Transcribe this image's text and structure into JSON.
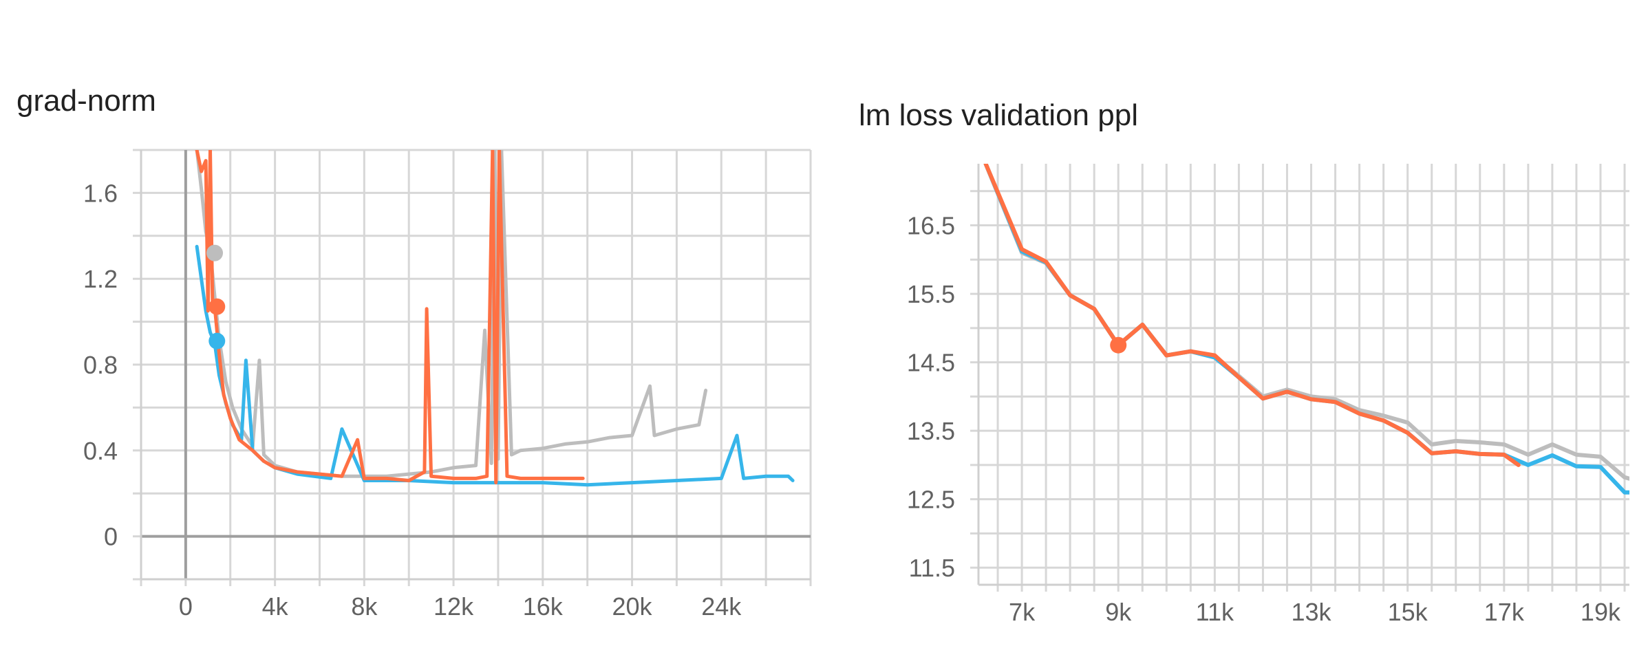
{
  "chart_data": [
    {
      "type": "line",
      "title": "grad-norm",
      "xlabel": "",
      "ylabel": "",
      "xlim": [
        -2000,
        28000
      ],
      "ylim": [
        -0.2,
        1.8
      ],
      "x_ticks": [
        "0",
        "4k",
        "8k",
        "12k",
        "16k",
        "20k",
        "24k"
      ],
      "y_ticks": [
        "0",
        "0.4",
        "0.8",
        "1.2",
        "1.6"
      ],
      "grid": true,
      "colors": {
        "blue": "#36b5ea",
        "gray": "#bdbdbd",
        "orange": "#ff7043"
      },
      "series": [
        {
          "color": "#bdbdbd",
          "x": [
            500,
            700,
            900,
            1100,
            1300,
            1500,
            1800,
            2100,
            2500,
            3000,
            3300,
            3500,
            4000,
            5000,
            6000,
            7000,
            8000,
            9000,
            10000,
            11000,
            12000,
            13000,
            13400,
            13700,
            13850,
            14000,
            14150,
            14600,
            15000,
            16000,
            17000,
            18000,
            19000,
            20000,
            20800,
            21000,
            22000,
            23000,
            23300
          ],
          "y": [
            1.8,
            1.62,
            1.42,
            1.33,
            1.12,
            0.92,
            0.72,
            0.6,
            0.5,
            0.42,
            0.82,
            0.38,
            0.33,
            0.3,
            0.29,
            0.28,
            0.28,
            0.28,
            0.29,
            0.3,
            0.32,
            0.33,
            0.96,
            0.34,
            1.8,
            0.36,
            1.8,
            0.38,
            0.4,
            0.41,
            0.43,
            0.44,
            0.46,
            0.47,
            0.7,
            0.47,
            0.5,
            0.52,
            0.68
          ],
          "marker": {
            "x": 1300,
            "y": 1.32
          }
        },
        {
          "color": "#36b5ea",
          "x": [
            500,
            700,
            900,
            1100,
            1300,
            1500,
            1800,
            2100,
            2500,
            2700,
            3000,
            3500,
            4000,
            5000,
            6500,
            7000,
            8000,
            9000,
            10000,
            12000,
            14000,
            16000,
            18000,
            20000,
            22000,
            24000,
            24700,
            25000,
            26000,
            27000,
            27200
          ],
          "y": [
            1.35,
            1.2,
            1.05,
            0.95,
            0.9,
            0.75,
            0.62,
            0.52,
            0.45,
            0.82,
            0.4,
            0.35,
            0.32,
            0.29,
            0.27,
            0.5,
            0.26,
            0.26,
            0.26,
            0.25,
            0.25,
            0.25,
            0.24,
            0.25,
            0.26,
            0.27,
            0.47,
            0.27,
            0.28,
            0.28,
            0.26
          ],
          "marker": {
            "x": 1400,
            "y": 0.91
          }
        },
        {
          "color": "#ff7043",
          "x": [
            500,
            700,
            900,
            1000,
            1100,
            1200,
            1300,
            1500,
            1700,
            2000,
            2400,
            3000,
            3500,
            4000,
            5000,
            6000,
            7000,
            7700,
            8000,
            9000,
            10000,
            10700,
            10800,
            11000,
            12000,
            13000,
            13500,
            13750,
            13900,
            14050,
            14400,
            15000,
            16000,
            17000,
            17800
          ],
          "y": [
            1.8,
            1.7,
            1.75,
            1.05,
            1.8,
            1.1,
            1.07,
            0.85,
            0.66,
            0.55,
            0.45,
            0.4,
            0.35,
            0.32,
            0.3,
            0.29,
            0.28,
            0.45,
            0.27,
            0.27,
            0.26,
            0.3,
            1.06,
            0.28,
            0.27,
            0.27,
            0.28,
            1.8,
            0.25,
            1.8,
            0.28,
            0.27,
            0.27,
            0.27,
            0.27
          ],
          "marker": {
            "x": 1400,
            "y": 1.07
          }
        }
      ]
    },
    {
      "type": "line",
      "title": "lm loss validation ppl",
      "xlabel": "",
      "ylabel": "",
      "xlim": [
        6100,
        19600
      ],
      "ylim": [
        11.25,
        17.4
      ],
      "x_ticks": [
        "7k",
        "9k",
        "11k",
        "13k",
        "15k",
        "17k",
        "19k"
      ],
      "y_ticks": [
        "11.5",
        "12.5",
        "13.5",
        "14.5",
        "15.5",
        "16.5"
      ],
      "grid": true,
      "series": [
        {
          "color": "#bdbdbd",
          "x": [
            6250,
            7000,
            7500,
            8000,
            8500,
            9000,
            9500,
            10000,
            10500,
            11000,
            11500,
            12000,
            12500,
            13000,
            13500,
            14000,
            14500,
            15000,
            15500,
            16000,
            16500,
            17000,
            17500,
            18000,
            18500,
            19000,
            19500,
            19600
          ],
          "y": [
            17.4,
            16.1,
            15.95,
            15.48,
            15.28,
            14.75,
            15.05,
            14.6,
            14.66,
            14.58,
            14.3,
            14.0,
            14.1,
            14.0,
            13.96,
            13.8,
            13.72,
            13.62,
            13.3,
            13.35,
            13.33,
            13.3,
            13.15,
            13.3,
            13.15,
            13.12,
            12.82,
            12.8
          ]
        },
        {
          "color": "#36b5ea",
          "x": [
            6250,
            7000,
            7500,
            8000,
            8500,
            9000,
            9500,
            10000,
            10500,
            11000,
            11500,
            12000,
            12500,
            13000,
            13500,
            14000,
            14500,
            15000,
            15500,
            16000,
            16500,
            17000,
            17500,
            18000,
            18500,
            19000,
            19500,
            19600
          ],
          "y": [
            17.4,
            16.12,
            15.96,
            15.48,
            15.28,
            14.75,
            15.05,
            14.6,
            14.66,
            14.57,
            14.28,
            13.97,
            14.07,
            13.96,
            13.92,
            13.75,
            13.65,
            13.47,
            13.17,
            13.2,
            13.16,
            13.15,
            13.0,
            13.14,
            12.98,
            12.97,
            12.6,
            12.6
          ]
        },
        {
          "color": "#ff7043",
          "x": [
            6250,
            7000,
            7500,
            8000,
            8500,
            9000,
            9500,
            10000,
            10500,
            11000,
            11500,
            12000,
            12500,
            13000,
            13500,
            14000,
            14500,
            15000,
            15500,
            16000,
            16500,
            17000,
            17300
          ],
          "y": [
            17.4,
            16.15,
            15.97,
            15.48,
            15.28,
            14.75,
            15.05,
            14.6,
            14.66,
            14.6,
            14.28,
            13.97,
            14.07,
            13.96,
            13.92,
            13.75,
            13.65,
            13.47,
            13.17,
            13.2,
            13.16,
            13.15,
            13.0
          ],
          "marker": {
            "x": 9000,
            "y": 14.75
          }
        }
      ]
    }
  ]
}
